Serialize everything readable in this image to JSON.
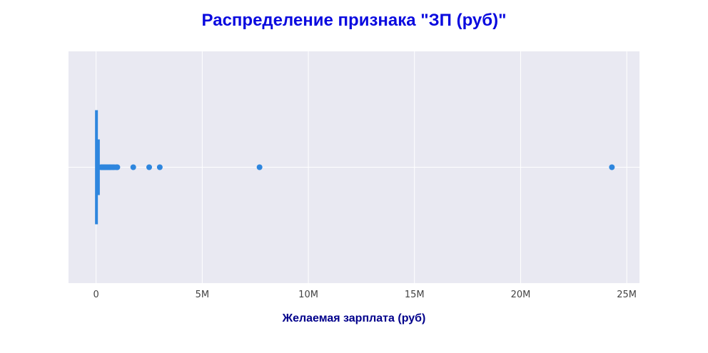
{
  "chart_data": {
    "type": "box",
    "orientation": "horizontal",
    "title": "Распределение признака \"ЗП (руб)\"",
    "xlabel": "Желаемая зарплата (руб)",
    "ylabel": "",
    "xlim": [
      -1300000,
      25600000
    ],
    "x_ticks": [
      0,
      5000000,
      10000000,
      15000000,
      20000000,
      25000000
    ],
    "x_tick_labels": [
      "0",
      "5M",
      "10M",
      "15M",
      "20M",
      "25M"
    ],
    "grid": true,
    "box": {
      "q1": 40000,
      "median": 80000,
      "q3": 120000,
      "whisker_low": 0,
      "whisker_high": 200000
    },
    "outliers": [
      230000,
      270000,
      300000,
      340000,
      380000,
      420000,
      470000,
      520000,
      580000,
      640000,
      700000,
      780000,
      850000,
      950000,
      1000000,
      1750000,
      2500000,
      3000000,
      7700000,
      24300000
    ],
    "colors": {
      "marker": "#2e86de",
      "plot_bg": "#e9e9f2",
      "grid": "#ffffff"
    }
  }
}
